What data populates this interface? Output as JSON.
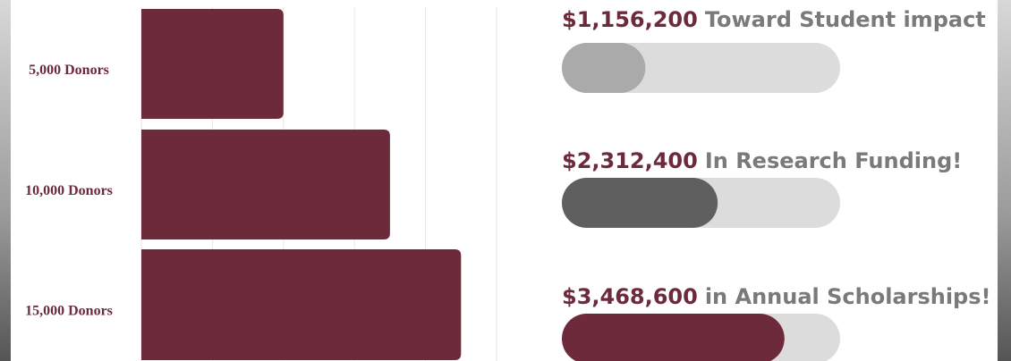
{
  "chart_data": {
    "type": "bar",
    "orientation": "horizontal",
    "categories": [
      "5,000 Donors",
      "10,000 Donors",
      "15,000 Donors"
    ],
    "values": [
      2,
      3.5,
      4.5
    ],
    "color": "#6d2a3b",
    "xlim": [
      0,
      5
    ],
    "xticks": [
      0,
      1,
      2,
      3,
      4,
      5
    ],
    "grid": true
  },
  "progress": [
    {
      "amount": "$1,156,200",
      "text": "Toward Student impact",
      "value": 30,
      "color": "#aaaaaa"
    },
    {
      "amount": "$2,312,400",
      "text": "In Research Funding!",
      "value": 56,
      "color": "#5f5f5f"
    },
    {
      "amount": "$3,468,600",
      "text": "in Annual Scholarships!",
      "value": 80,
      "color": "#6d2a3b"
    }
  ],
  "progress_range": [
    0,
    100
  ]
}
